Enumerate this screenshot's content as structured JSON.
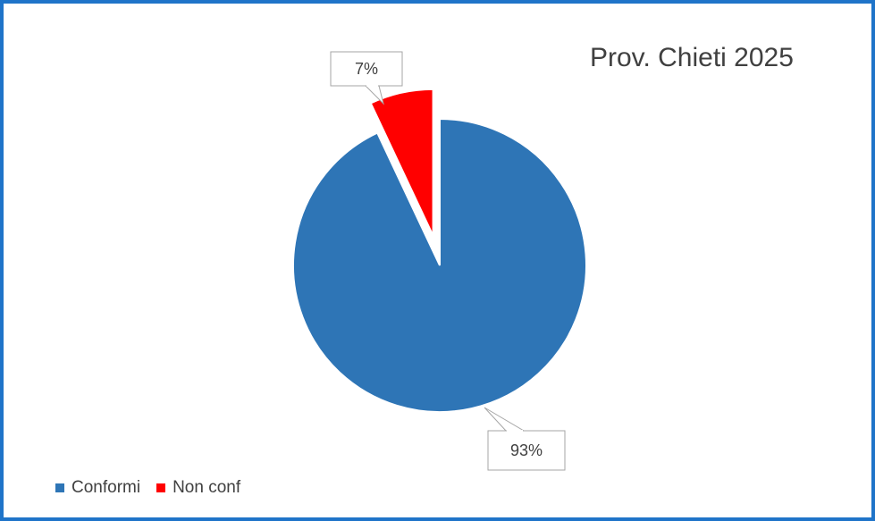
{
  "chart_data": {
    "type": "pie",
    "title": "Prov. Chieti 2025",
    "categories": [
      "Conformi",
      "Non conf"
    ],
    "values": [
      93,
      7
    ],
    "data_labels": [
      "93%",
      "7%"
    ],
    "colors": [
      "#2e75b6",
      "#ff0000"
    ],
    "exploded": [
      "Non conf"
    ],
    "legend": "bottom-left"
  }
}
